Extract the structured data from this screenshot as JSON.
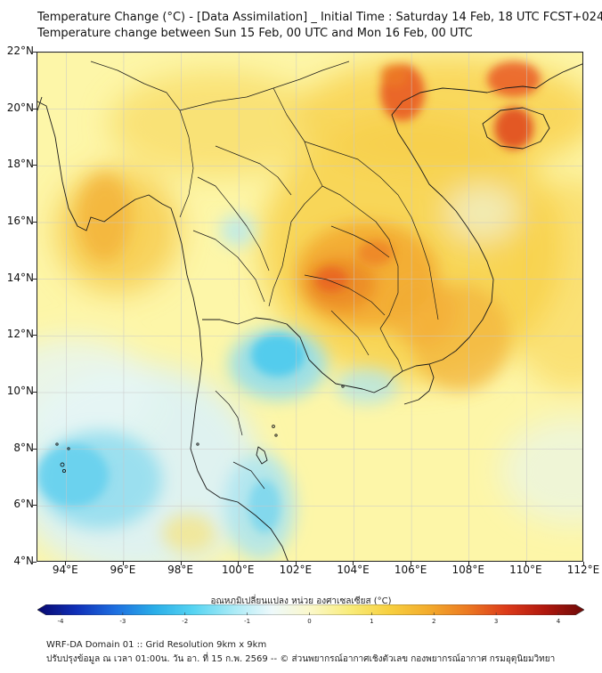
{
  "header": {
    "title_line1": "Temperature Change (°C) - [Data Assimilation] _ Initial Time : Saturday 14 Feb, 18 UTC FCST+024",
    "title_line2": "Temperature change between Sun 15 Feb, 00 UTC and Mon 16 Feb, 00 UTC"
  },
  "map": {
    "lon_range": [
      93,
      112
    ],
    "lat_range": [
      4,
      22
    ],
    "y_ticks": [
      "4°N",
      "6°N",
      "8°N",
      "10°N",
      "12°N",
      "14°N",
      "16°N",
      "18°N",
      "20°N",
      "22°N"
    ],
    "x_ticks": [
      "94°E",
      "96°E",
      "98°E",
      "100°E",
      "102°E",
      "104°E",
      "106°E",
      "108°E",
      "110°E",
      "112°E"
    ],
    "gridlines": true,
    "palette": {
      "background": "#fdf6a8",
      "warm_light": "#f7d04a",
      "warm_mid": "#f2a72e",
      "warm_strong": "#e8531f",
      "cool_light": "#dbf2f7",
      "cool_mid": "#7fd9ee",
      "cool_strong": "#35c4ec",
      "coast": "#1a1a1a"
    }
  },
  "colorbar": {
    "title": "อุณหภูมิเปลี่ยนแปลง หน่วย องศาเซลเซียส (°C)",
    "ticks": [
      "-4",
      "-3",
      "-2",
      "-1",
      "0",
      "1",
      "2",
      "3",
      "4"
    ],
    "range": [
      -4,
      4
    ],
    "colors": [
      "#08086e",
      "#1030b8",
      "#1e6fe0",
      "#2aaee8",
      "#56d4f2",
      "#a8eaf6",
      "#eef9fb",
      "#fbf8c9",
      "#f9ec7a",
      "#f7d040",
      "#f3ac2c",
      "#ec7a22",
      "#dc3b1a",
      "#b0180e",
      "#6e0a08"
    ]
  },
  "footer": {
    "line1": "WRF-DA Domain 01 :: Grid Resolution 9km x 9km",
    "line2": "ปรับปรุงข้อมูล ณ เวลา 01:00น. วัน อา. ที่ 15 ก.พ. 2569 -- © ส่วนพยากรณ์อากาศเชิงตัวเลข กองพยากรณ์อากาศ กรมอุตุนิยมวิทยา"
  }
}
